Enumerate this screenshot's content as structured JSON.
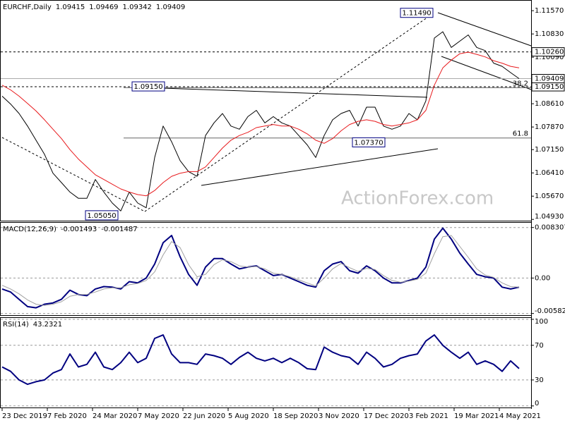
{
  "chart_data": [
    {
      "type": "line",
      "title": "EURCHF,Daily",
      "quote": [
        1.09415,
        1.09469,
        1.09342,
        1.09409
      ],
      "x": [
        0,
        6,
        12,
        18,
        24,
        30,
        36,
        42,
        48,
        54,
        60,
        66,
        72,
        78,
        84,
        90,
        96,
        102,
        108,
        114,
        120,
        126,
        132,
        138,
        144,
        150,
        156,
        162,
        168,
        174,
        180,
        186,
        192,
        198,
        204,
        210,
        216,
        222,
        228,
        234,
        240,
        246,
        252,
        258,
        264,
        270,
        276,
        282,
        288,
        294,
        300,
        306,
        312,
        318,
        324,
        330,
        336,
        342,
        348,
        354,
        360,
        366
      ],
      "xlim": [
        -1.5,
        374.5
      ],
      "xticks": [
        {
          "value": 0,
          "label": "23 Dec 2019"
        },
        {
          "value": 32,
          "label": "7 Feb 2020"
        },
        {
          "value": 64,
          "label": "24 Mar 2020"
        },
        {
          "value": 96,
          "label": "7 May 2020"
        },
        {
          "value": 128,
          "label": "22 Jun 2020"
        },
        {
          "value": 160,
          "label": "5 Aug 2020"
        },
        {
          "value": 192,
          "label": "18 Sep 2020"
        },
        {
          "value": 224,
          "label": "3 Nov 2020"
        },
        {
          "value": 256,
          "label": "17 Dec 2020"
        },
        {
          "value": 288,
          "label": "3 Feb 2021"
        },
        {
          "value": 320,
          "label": "19 Mar 2021"
        },
        {
          "value": 352,
          "label": "4 May 2021"
        }
      ],
      "ylim": [
        1.0489,
        1.1191
      ],
      "yticks": [
        {
          "value": 1.1157,
          "label": "1.11570"
        },
        {
          "value": 1.1083,
          "label": "1.10830"
        },
        {
          "value": 1.1009,
          "label": "1.10090"
        },
        {
          "value": 1.0861,
          "label": "1.08610"
        },
        {
          "value": 1.0787,
          "label": "1.07870"
        },
        {
          "value": 1.0715,
          "label": "1.07150"
        },
        {
          "value": 1.0641,
          "label": "1.06410"
        },
        {
          "value": 1.0567,
          "label": "1.05670"
        },
        {
          "value": 1.0493,
          "label": "1.04930"
        }
      ],
      "grid": false,
      "series": [
        {
          "color": "#000000",
          "values": [
            1.0885,
            1.086,
            1.083,
            1.079,
            1.0745,
            1.07,
            1.064,
            1.061,
            1.058,
            1.056,
            1.056,
            1.062,
            1.058,
            1.0545,
            1.052,
            1.058,
            1.0545,
            1.053,
            1.069,
            1.079,
            1.074,
            1.068,
            1.0645,
            1.063,
            1.076,
            1.08,
            1.083,
            1.079,
            1.078,
            1.082,
            1.084,
            1.08,
            1.082,
            1.08,
            1.079,
            1.076,
            1.073,
            1.069,
            1.076,
            1.081,
            1.083,
            1.084,
            1.079,
            1.085,
            1.085,
            1.079,
            1.078,
            1.079,
            1.083,
            1.081,
            1.087,
            1.107,
            1.109,
            1.104,
            1.106,
            1.108,
            1.104,
            1.103,
            1.099,
            1.098,
            1.096,
            1.0941
          ]
        },
        {
          "color": "#e8191c",
          "values": [
            1.092,
            1.0905,
            1.0885,
            1.0862,
            1.0838,
            1.081,
            1.078,
            1.075,
            1.0715,
            1.0685,
            1.066,
            1.0635,
            1.062,
            1.0605,
            1.059,
            1.058,
            1.0572,
            1.0568,
            1.0585,
            1.061,
            1.063,
            1.064,
            1.0645,
            1.0645,
            1.066,
            1.069,
            1.072,
            1.0745,
            1.076,
            1.077,
            1.0785,
            1.079,
            1.0795,
            1.079,
            1.079,
            1.078,
            1.0765,
            1.0745,
            1.0735,
            1.075,
            1.0775,
            1.0795,
            1.0805,
            1.081,
            1.0805,
            1.0795,
            1.079,
            1.0795,
            1.08,
            1.081,
            1.084,
            1.092,
            1.0975,
            1.1,
            1.102,
            1.1025,
            1.1018,
            1.101,
            1.0998,
            1.099,
            1.098,
            1.0975
          ]
        }
      ],
      "levels": [
        {
          "value": 1.1026,
          "label": "1.10260"
        },
        {
          "value": 1.0915,
          "label": "1.09150"
        }
      ],
      "current": {
        "value": 1.09409,
        "label": "1.09409"
      },
      "annotations": [
        {
          "label": "1.11490",
          "value": 1.1149,
          "x": 307
        },
        {
          "label": "1.09150",
          "value": 1.0915,
          "x": 117
        },
        {
          "label": "1.07370",
          "value": 1.0737,
          "x": 273
        },
        {
          "label": "1.05050",
          "value": 1.0505,
          "x": 84
        }
      ],
      "fib": [
        {
          "ratio": 61.8,
          "level": 1.0752
        },
        {
          "ratio": 38.2,
          "level": 1.0912
        }
      ],
      "watermark": "ActionForex.com"
    },
    {
      "type": "line",
      "title": "MACD(12,26,9)",
      "readings": [
        -0.001493,
        -0.001487
      ],
      "ylim": [
        -0.0061,
        0.0092
      ],
      "yticks": [
        0.008307,
        {
          "value": 0,
          "label": "0.00"
        },
        -0.005828
      ],
      "grid": true,
      "series": [
        {
          "color": "#000080",
          "values": [
            -0.0018,
            -0.0023,
            -0.0035,
            -0.0047,
            -0.0049,
            -0.0043,
            -0.0041,
            -0.0035,
            -0.002,
            -0.0027,
            -0.0029,
            -0.0018,
            -0.0014,
            -0.0015,
            -0.0018,
            -0.0006,
            -0.0008,
            0.0,
            0.0023,
            0.0058,
            0.007,
            0.0035,
            0.0006,
            -0.0012,
            0.0018,
            0.0032,
            0.0032,
            0.0023,
            0.0015,
            0.0018,
            0.002,
            0.0012,
            0.0004,
            0.0006,
            0.0,
            -0.0006,
            -0.0012,
            -0.0015,
            0.0012,
            0.0023,
            0.0027,
            0.0012,
            0.0008,
            0.002,
            0.0012,
            0.0,
            -0.0008,
            -0.0008,
            -0.0004,
            0.0,
            0.0018,
            0.0064,
            0.0082,
            0.0064,
            0.0041,
            0.0023,
            0.0006,
            0.0002,
            0.0,
            -0.0015,
            -0.0018,
            -0.0015
          ]
        },
        {
          "color": "#a0a0a0",
          "values": [
            -0.0012,
            -0.0018,
            -0.0026,
            -0.0036,
            -0.0043,
            -0.0045,
            -0.0043,
            -0.0039,
            -0.003,
            -0.0027,
            -0.0027,
            -0.0023,
            -0.0018,
            -0.0016,
            -0.0016,
            -0.0011,
            -0.0009,
            -0.0004,
            0.001,
            0.0038,
            0.006,
            0.005,
            0.0022,
            0.0002,
            0.0006,
            0.0022,
            0.003,
            0.0027,
            0.002,
            0.0018,
            0.0019,
            0.0015,
            0.0008,
            0.0006,
            0.0002,
            -0.0003,
            -0.0008,
            -0.0013,
            0.0,
            0.0015,
            0.0024,
            0.0017,
            0.0011,
            0.0016,
            0.0014,
            0.0004,
            -0.0004,
            -0.0007,
            -0.0005,
            -0.0002,
            0.0008,
            0.004,
            0.0068,
            0.007,
            0.0052,
            0.0034,
            0.0015,
            0.0005,
            0.0001,
            -0.0008,
            -0.0014,
            -0.0015
          ]
        }
      ]
    },
    {
      "type": "line",
      "title": "RSI(14)",
      "readings": [
        43.2321
      ],
      "ylim": [
        -1.8,
        102.4
      ],
      "yticks": [
        100,
        70,
        30,
        0
      ],
      "grid": true,
      "series": [
        {
          "color": "#000080",
          "values": [
            45,
            40,
            30,
            25,
            28,
            30,
            38,
            42,
            60,
            45,
            48,
            62,
            45,
            42,
            50,
            62,
            50,
            55,
            78,
            82,
            60,
            50,
            50,
            48,
            60,
            58,
            55,
            48,
            56,
            62,
            55,
            52,
            55,
            50,
            55,
            50,
            43,
            42,
            68,
            62,
            58,
            56,
            48,
            62,
            55,
            45,
            48,
            55,
            58,
            60,
            75,
            82,
            70,
            62,
            55,
            62,
            48,
            52,
            48,
            40,
            52,
            43.2321
          ]
        }
      ]
    }
  ]
}
